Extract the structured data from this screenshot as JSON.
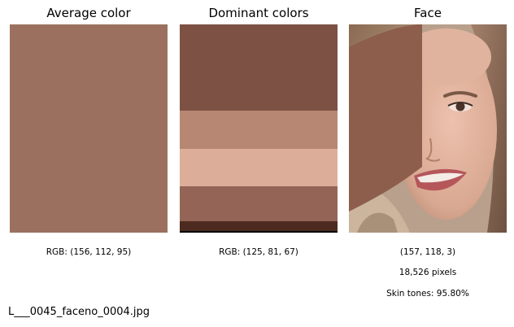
{
  "panels": {
    "average": {
      "title": "Average color",
      "caption": "RGB: (156, 112, 95)",
      "color": "#9c705f"
    },
    "dominant": {
      "title": "Dominant colors",
      "caption": "RGB: (125, 81, 67)",
      "bands": [
        {
          "color": "#7d5143",
          "fraction": 0.414
        },
        {
          "color": "#b88774",
          "fraction": 0.184
        },
        {
          "color": "#dcae99",
          "fraction": 0.18
        },
        {
          "color": "#946556",
          "fraction": 0.168
        },
        {
          "color": "#4c2a1f",
          "fraction": 0.047
        },
        {
          "color": "#000000",
          "fraction": 0.007
        }
      ]
    },
    "face": {
      "title": "Face",
      "caption": "(157, 118, 3)",
      "pixels": "18,526 pixels",
      "skin_tones": "Skin tones: 95.80%",
      "overlay_color": "#8c5e4b"
    }
  },
  "filename": "L___0045_faceno_0004.jpg"
}
